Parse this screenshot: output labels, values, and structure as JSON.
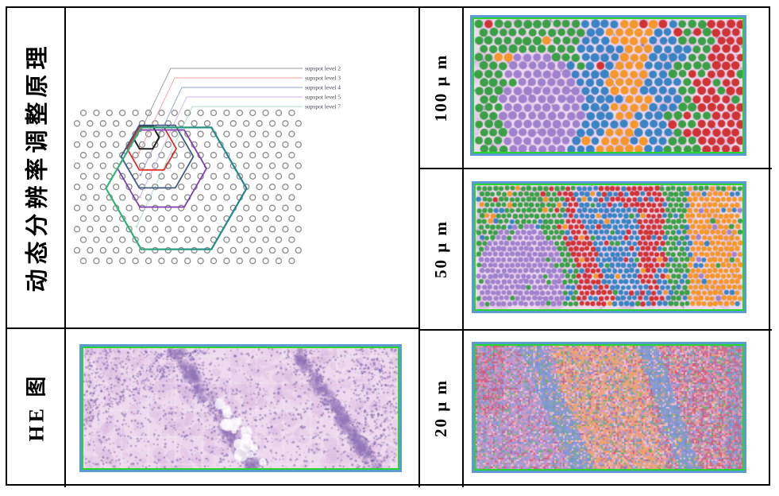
{
  "figure": {
    "left_column": {
      "row1_label": "动态分辨率调整原理",
      "row2_label": "HE 图"
    },
    "right_column": {
      "row1_label": "100 μ m",
      "row2_label": "50 μ m",
      "row3_label": "20 μ m"
    }
  },
  "diagram": {
    "legend_text_color": "#3d3d52",
    "dot_grid": {
      "rows": 15,
      "cols": 18,
      "stroke": "#8a8a8a"
    },
    "levels": [
      {
        "label": "supspot level 2",
        "hex_color": "#1c1c1c",
        "line_color": "#9a9a9a"
      },
      {
        "label": "supspot level 3",
        "hex_color": "#e12c2c",
        "line_color": "#f0a0a0"
      },
      {
        "label": "supspot level 4",
        "hex_color": "#3d5a85",
        "line_color": "#8fa0d0"
      },
      {
        "label": "supspot level 5",
        "hex_color": "#7e3fae",
        "line_color": "#cfb0ea"
      },
      {
        "label": "supspot level 7",
        "hex_color": "#35b873",
        "hex_color_right": "#1f8090",
        "line_color": "#a5dcc2"
      }
    ]
  },
  "panels": {
    "frame": {
      "outer_border": "#5b9bd5",
      "inner_border": "#2bd42b"
    },
    "cluster_colors": {
      "green": "#2f9e3c",
      "blue": "#2e7fc2",
      "purple": "#9b7dcc",
      "orange": "#f6941f",
      "red": "#d02a2a"
    },
    "he_palette": {
      "base": "#eed9ee",
      "mottle": "#dcbadf",
      "mottle2": "#e6c9e9",
      "band": "#8f72b5",
      "speckle": "#6f58a0",
      "grid_line": "#ffffff"
    },
    "pix20_palette": {
      "pink": "#e18fae",
      "lightpink": "#ecc0d2",
      "red": "#cf5577",
      "purple": "#a78fd8",
      "blue": "#7090cc",
      "orange": "#f09c5e",
      "green": "#5cb168"
    }
  }
}
